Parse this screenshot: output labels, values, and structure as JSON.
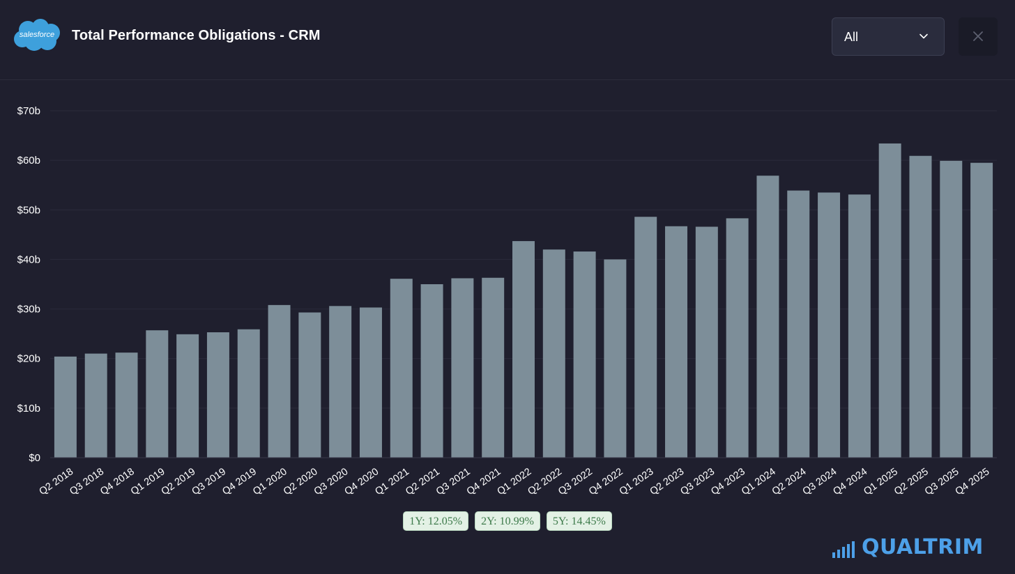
{
  "header": {
    "logo_text": "salesforce",
    "title": "Total Performance Obligations - CRM",
    "period_select": {
      "value": "All"
    },
    "close_icon": "close-icon"
  },
  "colors": {
    "background": "#1f1f2e",
    "bar": "#7d8e99",
    "grid": "#2b2b3b",
    "badge_bg": "#e3f1e5",
    "badge_text": "#3d7a4a",
    "brand": "#4da0e8",
    "logo": "#3ea0dc"
  },
  "chart_data": {
    "type": "bar",
    "title": "",
    "xlabel": "",
    "ylabel": "",
    "ylim": [
      0,
      70
    ],
    "yticks": [
      0,
      10,
      20,
      30,
      40,
      50,
      60,
      70
    ],
    "ytick_labels": [
      "$0",
      "$10b",
      "$20b",
      "$30b",
      "$40b",
      "$50b",
      "$60b",
      "$70b"
    ],
    "grid": true,
    "categories": [
      "Q2 2018",
      "Q3 2018",
      "Q4 2018",
      "Q1 2019",
      "Q2 2019",
      "Q3 2019",
      "Q4 2019",
      "Q1 2020",
      "Q2 2020",
      "Q3 2020",
      "Q4 2020",
      "Q1 2021",
      "Q2 2021",
      "Q3 2021",
      "Q4 2021",
      "Q1 2022",
      "Q2 2022",
      "Q3 2022",
      "Q4 2022",
      "Q1 2023",
      "Q2 2023",
      "Q3 2023",
      "Q4 2023",
      "Q1 2024",
      "Q2 2024",
      "Q3 2024",
      "Q4 2024",
      "Q1 2025",
      "Q2 2025",
      "Q3 2025",
      "Q4 2025"
    ],
    "values": [
      20.4,
      21.0,
      21.2,
      25.7,
      24.9,
      25.3,
      25.9,
      30.8,
      29.3,
      30.6,
      30.3,
      36.1,
      35.0,
      36.2,
      36.3,
      43.7,
      42.0,
      41.6,
      40.0,
      48.6,
      46.7,
      46.6,
      48.3,
      56.9,
      53.9,
      53.5,
      53.1,
      63.4,
      60.9,
      59.9,
      59.5
    ]
  },
  "growth_badges": [
    {
      "label": "1Y: 12.05%"
    },
    {
      "label": "2Y: 10.99%"
    },
    {
      "label": "5Y: 14.45%"
    }
  ],
  "brand": {
    "name": "QUALTRIM",
    "icon": "signal-bars-icon"
  }
}
